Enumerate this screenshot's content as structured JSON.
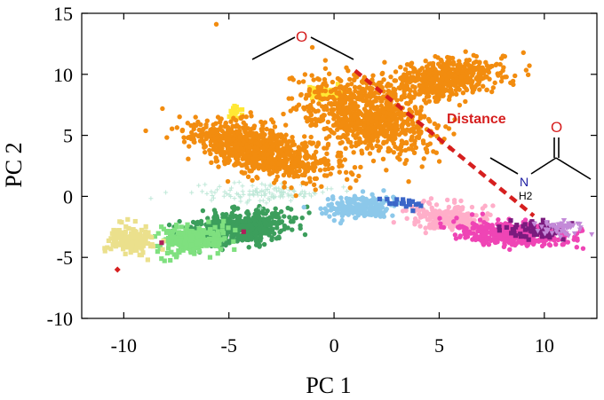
{
  "chart_data": {
    "type": "scatter",
    "title": "",
    "xlabel": "PC 1",
    "ylabel": "PC 2",
    "xlim": [
      -12,
      12.5
    ],
    "ylim": [
      -10,
      15
    ],
    "xticks": [
      -10,
      -5,
      0,
      5,
      10
    ],
    "yticks": [
      -10,
      -5,
      0,
      5,
      10,
      15
    ],
    "grid": false,
    "legend": "none",
    "annotations": {
      "distance_label": "Distance",
      "ether_oxygen": "O",
      "amide_oxygen": "O",
      "amide_nitrogen": "N",
      "amide_hydrogens": "H2"
    },
    "distance_line": {
      "from": [
        1,
        10.3
      ],
      "to": [
        9.5,
        -1.6
      ],
      "color": "#d61f1f"
    },
    "clusters": [
      {
        "color": "#f28c0f",
        "center": [
          -3.5,
          3.8
        ],
        "spread": [
          1.6,
          3.1
        ],
        "rotation": 60,
        "n": 850,
        "shape": "circle"
      },
      {
        "color": "#f28c0f",
        "center": [
          1.6,
          6.6
        ],
        "spread": [
          2.3,
          3.4
        ],
        "rotation": 45,
        "n": 800,
        "shape": "circle"
      },
      {
        "color": "#f28c0f",
        "center": [
          5.2,
          9.6
        ],
        "spread": [
          2.6,
          1.4
        ],
        "rotation": 20,
        "n": 550,
        "shape": "circle"
      },
      {
        "color": "#ffe835",
        "center": [
          -0.5,
          8.4
        ],
        "spread": [
          0.8,
          0.6
        ],
        "rotation": 0,
        "n": 40,
        "shape": "square"
      },
      {
        "color": "#ffe835",
        "center": [
          -4.8,
          6.8
        ],
        "spread": [
          0.5,
          0.6
        ],
        "rotation": 0,
        "n": 20,
        "shape": "square"
      },
      {
        "color": "#3c9e5c",
        "center": [
          -4.5,
          -2.6
        ],
        "spread": [
          2.2,
          1.2
        ],
        "rotation": 15,
        "n": 520,
        "shape": "circle"
      },
      {
        "color": "#7fe07f",
        "center": [
          -6.8,
          -3.6
        ],
        "spread": [
          1.4,
          1.0
        ],
        "rotation": 15,
        "n": 260,
        "shape": "square"
      },
      {
        "color": "#ebe08c",
        "center": [
          -9.7,
          -3.6
        ],
        "spread": [
          0.9,
          1.0
        ],
        "rotation": 0,
        "n": 180,
        "shape": "square"
      },
      {
        "color": "#8cc8ea",
        "center": [
          1.2,
          -0.9
        ],
        "spread": [
          1.5,
          0.8
        ],
        "rotation": 10,
        "n": 230,
        "shape": "circle"
      },
      {
        "color": "#ffaec9",
        "center": [
          5.5,
          -1.8
        ],
        "spread": [
          1.7,
          1.1
        ],
        "rotation": -10,
        "n": 230,
        "shape": "circle"
      },
      {
        "color": "#ef45b5",
        "center": [
          8.5,
          -3.1
        ],
        "spread": [
          2.4,
          0.8
        ],
        "rotation": -5,
        "n": 420,
        "shape": "circle"
      },
      {
        "color": "#7a1b7e",
        "center": [
          9.5,
          -2.8
        ],
        "spread": [
          1.6,
          0.8
        ],
        "rotation": 0,
        "n": 60,
        "shape": "square"
      },
      {
        "color": "#c38ad8",
        "center": [
          10.8,
          -2.6
        ],
        "spread": [
          1.0,
          0.6
        ],
        "rotation": 0,
        "n": 60,
        "shape": "triangle"
      },
      {
        "color": "#3b66c8",
        "center": [
          3.5,
          -0.6
        ],
        "spread": [
          0.9,
          0.4
        ],
        "rotation": 0,
        "n": 20,
        "shape": "square"
      },
      {
        "color": "#bfe8d8",
        "center": [
          -3.0,
          0.2
        ],
        "spread": [
          3.0,
          0.7
        ],
        "rotation": 0,
        "n": 120,
        "shape": "cross"
      }
    ],
    "outliers": [
      {
        "x": -10.3,
        "y": -6.0,
        "color": "#d61f1f",
        "shape": "diamond"
      },
      {
        "x": -8.2,
        "y": -3.8,
        "color": "#b01f5a",
        "shape": "square"
      },
      {
        "x": -5.6,
        "y": 14.1,
        "color": "#f28c0f",
        "shape": "circle"
      },
      {
        "x": -4.3,
        "y": -2.9,
        "color": "#b01f5a",
        "shape": "square"
      }
    ]
  }
}
